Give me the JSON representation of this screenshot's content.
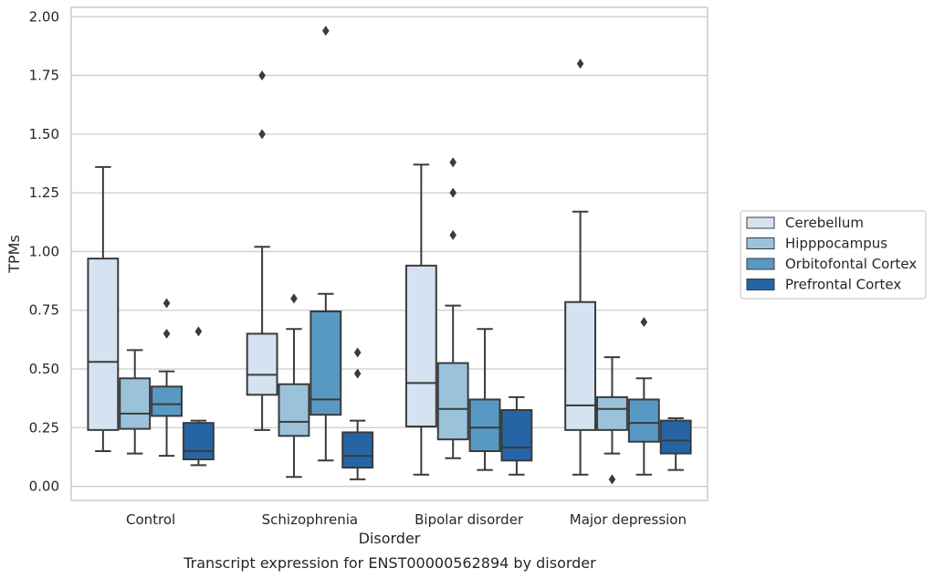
{
  "chart_data": {
    "type": "box",
    "title": "",
    "caption": "Transcript expression for ENST00000562894 by disorder",
    "xlabel": "Disorder",
    "ylabel": "TPMs",
    "ylim": [
      -0.06,
      2.04
    ],
    "yticks": [
      "0.00",
      "0.25",
      "0.50",
      "0.75",
      "1.00",
      "1.25",
      "1.50",
      "1.75",
      "2.00"
    ],
    "grid": true,
    "legend_position": "right",
    "categories": [
      "Control",
      "Schizophrenia",
      "Bipolar disorder",
      "Major depression"
    ],
    "series": [
      {
        "name": "Cerebellum",
        "color": "#d4e2f1",
        "boxes": [
          {
            "whisker_low": 0.15,
            "q1": 0.24,
            "median": 0.53,
            "q3": 0.97,
            "whisker_high": 1.36,
            "outliers": []
          },
          {
            "whisker_low": 0.24,
            "q1": 0.39,
            "median": 0.475,
            "q3": 0.65,
            "whisker_high": 1.02,
            "outliers": [
              1.5,
              1.75
            ]
          },
          {
            "whisker_low": 0.05,
            "q1": 0.255,
            "median": 0.44,
            "q3": 0.94,
            "whisker_high": 1.37,
            "outliers": []
          },
          {
            "whisker_low": 0.05,
            "q1": 0.24,
            "median": 0.345,
            "q3": 0.785,
            "whisker_high": 1.17,
            "outliers": [
              1.8
            ]
          }
        ]
      },
      {
        "name": "Hipppocampus",
        "color": "#9ac3db",
        "boxes": [
          {
            "whisker_low": 0.14,
            "q1": 0.245,
            "median": 0.31,
            "q3": 0.46,
            "whisker_high": 0.58,
            "outliers": []
          },
          {
            "whisker_low": 0.04,
            "q1": 0.215,
            "median": 0.275,
            "q3": 0.435,
            "whisker_high": 0.67,
            "outliers": [
              0.8
            ]
          },
          {
            "whisker_low": 0.12,
            "q1": 0.2,
            "median": 0.33,
            "q3": 0.525,
            "whisker_high": 0.77,
            "outliers": [
              1.07,
              1.25,
              1.38
            ]
          },
          {
            "whisker_low": 0.14,
            "q1": 0.24,
            "median": 0.33,
            "q3": 0.38,
            "whisker_high": 0.55,
            "outliers": [
              0.03
            ]
          }
        ]
      },
      {
        "name": "Orbitofontal Cortex",
        "color": "#5899c3",
        "boxes": [
          {
            "whisker_low": 0.13,
            "q1": 0.3,
            "median": 0.35,
            "q3": 0.425,
            "whisker_high": 0.49,
            "outliers": [
              0.65,
              0.78
            ]
          },
          {
            "whisker_low": 0.11,
            "q1": 0.305,
            "median": 0.37,
            "q3": 0.745,
            "whisker_high": 0.82,
            "outliers": [
              1.94
            ]
          },
          {
            "whisker_low": 0.07,
            "q1": 0.15,
            "median": 0.25,
            "q3": 0.37,
            "whisker_high": 0.67,
            "outliers": []
          },
          {
            "whisker_low": 0.05,
            "q1": 0.19,
            "median": 0.27,
            "q3": 0.37,
            "whisker_high": 0.46,
            "outliers": [
              0.7
            ]
          }
        ]
      },
      {
        "name": "Prefrontal Cortex",
        "color": "#2565a6",
        "boxes": [
          {
            "whisker_low": 0.09,
            "q1": 0.115,
            "median": 0.15,
            "q3": 0.27,
            "whisker_high": 0.28,
            "outliers": [
              0.66
            ]
          },
          {
            "whisker_low": 0.03,
            "q1": 0.08,
            "median": 0.13,
            "q3": 0.23,
            "whisker_high": 0.28,
            "outliers": [
              0.48,
              0.57
            ]
          },
          {
            "whisker_low": 0.05,
            "q1": 0.11,
            "median": 0.165,
            "q3": 0.325,
            "whisker_high": 0.38,
            "outliers": []
          },
          {
            "whisker_low": 0.07,
            "q1": 0.14,
            "median": 0.195,
            "q3": 0.28,
            "whisker_high": 0.29,
            "outliers": []
          }
        ]
      }
    ]
  }
}
